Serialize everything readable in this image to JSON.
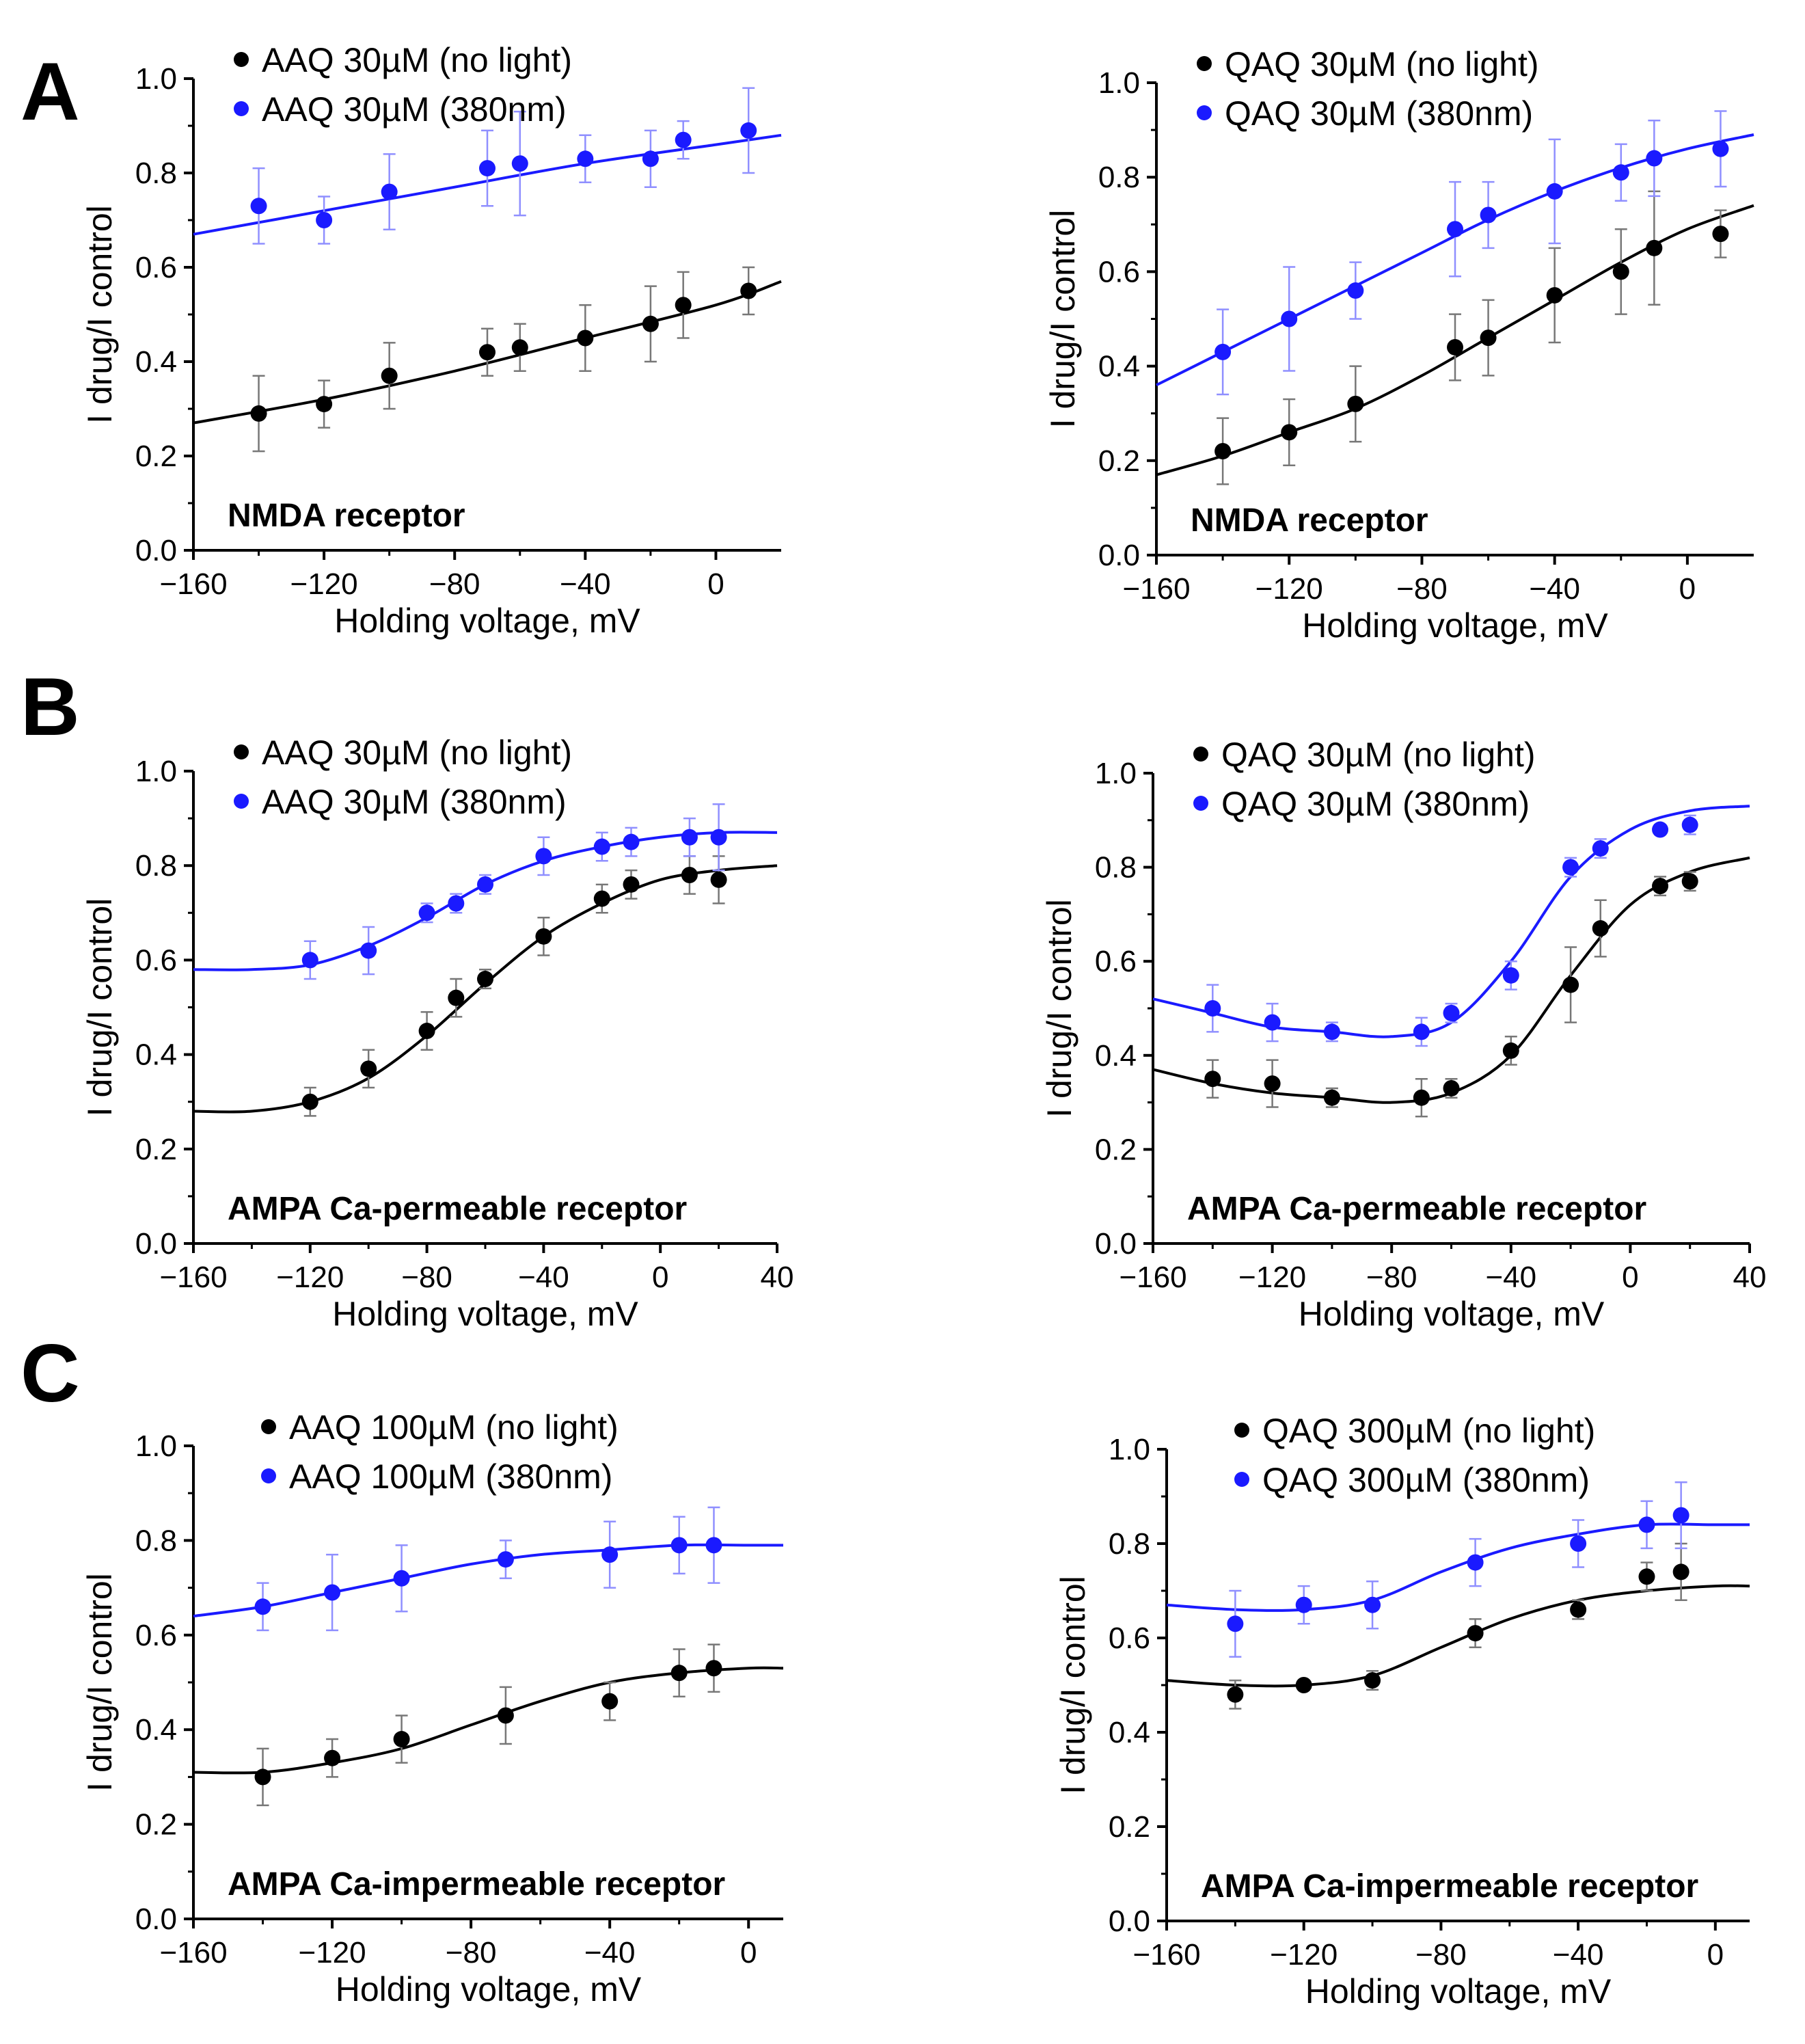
{
  "panel_letters": [
    "A",
    "B",
    "C"
  ],
  "colors": {
    "no_light": "#000000",
    "light": "#1a1aff",
    "light_errbar": "#8f8fff",
    "dark_errbar": "#777777"
  },
  "chart_data": [
    {
      "type": "scatter",
      "panel": "A",
      "title": "",
      "xlabel": "Holding voltage, mV",
      "ylabel": "I drug/I control",
      "xlim": [
        -160,
        20
      ],
      "ylim": [
        0.0,
        1.0
      ],
      "xticks": [
        -160,
        -120,
        -80,
        -40,
        0
      ],
      "xtick_labels": [
        "−160",
        "−120",
        "−80",
        "−40",
        "0"
      ],
      "yticks": [
        0.0,
        0.2,
        0.4,
        0.6,
        0.8,
        1.0
      ],
      "ytick_labels": [
        "0.0",
        "0.2",
        "0.4",
        "0.6",
        "0.8",
        "1.0"
      ],
      "annotation": "NMDA receptor",
      "legend_position": "top-left",
      "series": [
        {
          "name": "AAQ 30µM (no light)",
          "color": "#000000",
          "x": [
            -140,
            -120,
            -100,
            -70,
            -60,
            -40,
            -20,
            -10,
            10
          ],
          "y": [
            0.29,
            0.31,
            0.37,
            0.42,
            0.43,
            0.45,
            0.48,
            0.52,
            0.55
          ],
          "err": [
            0.08,
            0.05,
            0.07,
            0.05,
            0.05,
            0.07,
            0.08,
            0.07,
            0.05
          ],
          "fit": {
            "x": [
              -160,
              -120,
              -80,
              -40,
              0,
              20
            ],
            "y": [
              0.27,
              0.32,
              0.38,
              0.45,
              0.52,
              0.57
            ]
          }
        },
        {
          "name": "AAQ 30µM (380nm)",
          "color": "#1a1aff",
          "x": [
            -140,
            -120,
            -100,
            -70,
            -60,
            -40,
            -20,
            -10,
            10
          ],
          "y": [
            0.73,
            0.7,
            0.76,
            0.81,
            0.82,
            0.83,
            0.83,
            0.87,
            0.89
          ],
          "err": [
            0.08,
            0.05,
            0.08,
            0.08,
            0.11,
            0.05,
            0.06,
            0.04,
            0.09
          ],
          "fit": {
            "x": [
              -160,
              -120,
              -80,
              -40,
              0,
              20
            ],
            "y": [
              0.67,
              0.72,
              0.77,
              0.82,
              0.86,
              0.88
            ]
          }
        }
      ]
    },
    {
      "type": "scatter",
      "panel": "A",
      "title": "",
      "xlabel": "Holding voltage, mV",
      "ylabel": "I drug/I control",
      "xlim": [
        -160,
        20
      ],
      "ylim": [
        0.0,
        1.0
      ],
      "xticks": [
        -160,
        -120,
        -80,
        -40,
        0
      ],
      "xtick_labels": [
        "−160",
        "−120",
        "−80",
        "−40",
        "0"
      ],
      "yticks": [
        0.0,
        0.2,
        0.4,
        0.6,
        0.8,
        1.0
      ],
      "ytick_labels": [
        "0.0",
        "0.2",
        "0.4",
        "0.6",
        "0.8",
        "1.0"
      ],
      "annotation": "NMDA receptor",
      "legend_position": "top-left",
      "series": [
        {
          "name": "QAQ 30µM (no light)",
          "color": "#000000",
          "x": [
            -140,
            -120,
            -100,
            -70,
            -60,
            -40,
            -20,
            -10,
            10
          ],
          "y": [
            0.22,
            0.26,
            0.32,
            0.44,
            0.46,
            0.55,
            0.6,
            0.65,
            0.68
          ],
          "err": [
            0.07,
            0.07,
            0.08,
            0.07,
            0.08,
            0.1,
            0.09,
            0.12,
            0.05
          ],
          "fit": {
            "x": [
              -160,
              -140,
              -120,
              -100,
              -80,
              -60,
              -40,
              -20,
              0,
              20
            ],
            "y": [
              0.17,
              0.21,
              0.26,
              0.31,
              0.38,
              0.46,
              0.54,
              0.62,
              0.69,
              0.74
            ]
          }
        },
        {
          "name": "QAQ 30µM (380nm)",
          "color": "#1a1aff",
          "x": [
            -140,
            -120,
            -100,
            -70,
            -60,
            -40,
            -20,
            -10,
            10
          ],
          "y": [
            0.43,
            0.5,
            0.56,
            0.69,
            0.72,
            0.77,
            0.81,
            0.84,
            0.86
          ],
          "err": [
            0.09,
            0.11,
            0.06,
            0.1,
            0.07,
            0.11,
            0.06,
            0.08,
            0.08
          ],
          "fit": {
            "x": [
              -160,
              -140,
              -120,
              -100,
              -80,
              -60,
              -40,
              -20,
              0,
              20
            ],
            "y": [
              0.36,
              0.43,
              0.5,
              0.57,
              0.64,
              0.71,
              0.77,
              0.82,
              0.86,
              0.89
            ]
          }
        }
      ]
    },
    {
      "type": "scatter",
      "panel": "B",
      "title": "",
      "xlabel": "Holding voltage, mV",
      "ylabel": "I drug/I control",
      "xlim": [
        -160,
        40
      ],
      "ylim": [
        0.0,
        1.0
      ],
      "xticks": [
        -160,
        -120,
        -80,
        -40,
        0,
        40
      ],
      "xtick_labels": [
        "−160",
        "−120",
        "−80",
        "−40",
        "0",
        "40"
      ],
      "yticks": [
        0.0,
        0.2,
        0.4,
        0.6,
        0.8,
        1.0
      ],
      "ytick_labels": [
        "0.0",
        "0.2",
        "0.4",
        "0.6",
        "0.8",
        "1.0"
      ],
      "annotation": "AMPA Ca-permeable receptor",
      "legend_position": "top-left",
      "series": [
        {
          "name": "AAQ 30µM (no light)",
          "color": "#000000",
          "x": [
            -120,
            -100,
            -80,
            -70,
            -60,
            -40,
            -20,
            -10,
            10,
            20
          ],
          "y": [
            0.3,
            0.37,
            0.45,
            0.52,
            0.56,
            0.65,
            0.73,
            0.76,
            0.78,
            0.77
          ],
          "err": [
            0.03,
            0.04,
            0.04,
            0.04,
            0.02,
            0.04,
            0.03,
            0.03,
            0.04,
            0.05
          ],
          "fit": {
            "x": [
              -160,
              -140,
              -120,
              -100,
              -80,
              -60,
              -40,
              -20,
              0,
              20,
              40
            ],
            "y": [
              0.28,
              0.28,
              0.3,
              0.35,
              0.44,
              0.55,
              0.65,
              0.72,
              0.77,
              0.79,
              0.8
            ]
          }
        },
        {
          "name": "AAQ 30µM (380nm)",
          "color": "#1a1aff",
          "x": [
            -120,
            -100,
            -80,
            -70,
            -60,
            -40,
            -20,
            -10,
            10,
            20
          ],
          "y": [
            0.6,
            0.62,
            0.7,
            0.72,
            0.76,
            0.82,
            0.84,
            0.85,
            0.86,
            0.86
          ],
          "err": [
            0.04,
            0.05,
            0.02,
            0.02,
            0.02,
            0.04,
            0.03,
            0.03,
            0.04,
            0.07
          ],
          "fit": {
            "x": [
              -160,
              -140,
              -120,
              -100,
              -80,
              -60,
              -40,
              -20,
              0,
              20,
              40
            ],
            "y": [
              0.58,
              0.58,
              0.59,
              0.63,
              0.69,
              0.76,
              0.81,
              0.84,
              0.86,
              0.87,
              0.87
            ]
          }
        }
      ]
    },
    {
      "type": "scatter",
      "panel": "B",
      "title": "",
      "xlabel": "Holding voltage, mV",
      "ylabel": "I drug/I control",
      "xlim": [
        -160,
        40
      ],
      "ylim": [
        0.0,
        1.0
      ],
      "xticks": [
        -160,
        -120,
        -80,
        -40,
        0,
        40
      ],
      "xtick_labels": [
        "−160",
        "−120",
        "−80",
        "−40",
        "0",
        "40"
      ],
      "yticks": [
        0.0,
        0.2,
        0.4,
        0.6,
        0.8,
        1.0
      ],
      "ytick_labels": [
        "0.0",
        "0.2",
        "0.4",
        "0.6",
        "0.8",
        "1.0"
      ],
      "annotation": "AMPA Ca-permeable receptor",
      "legend_position": "top-left",
      "series": [
        {
          "name": "QAQ 30µM (no light)",
          "color": "#000000",
          "x": [
            -140,
            -120,
            -100,
            -70,
            -60,
            -40,
            -20,
            -10,
            10,
            20
          ],
          "y": [
            0.35,
            0.34,
            0.31,
            0.31,
            0.33,
            0.41,
            0.55,
            0.67,
            0.76,
            0.77
          ],
          "err": [
            0.04,
            0.05,
            0.02,
            0.04,
            0.02,
            0.03,
            0.08,
            0.06,
            0.02,
            0.02
          ],
          "fit": {
            "x": [
              -160,
              -140,
              -120,
              -100,
              -80,
              -60,
              -40,
              -20,
              0,
              20,
              40
            ],
            "y": [
              0.37,
              0.34,
              0.32,
              0.31,
              0.3,
              0.32,
              0.4,
              0.57,
              0.72,
              0.79,
              0.82
            ]
          }
        },
        {
          "name": "QAQ 30µM (380nm)",
          "color": "#1a1aff",
          "x": [
            -140,
            -120,
            -100,
            -70,
            -60,
            -40,
            -20,
            -10,
            10,
            20
          ],
          "y": [
            0.5,
            0.47,
            0.45,
            0.45,
            0.49,
            0.57,
            0.8,
            0.84,
            0.88,
            0.89
          ],
          "err": [
            0.05,
            0.04,
            0.02,
            0.03,
            0.02,
            0.03,
            0.02,
            0.02,
            0.01,
            0.02
          ],
          "fit": {
            "x": [
              -160,
              -140,
              -120,
              -100,
              -80,
              -60,
              -40,
              -20,
              0,
              20,
              40
            ],
            "y": [
              0.52,
              0.49,
              0.46,
              0.45,
              0.44,
              0.47,
              0.6,
              0.78,
              0.88,
              0.92,
              0.93
            ]
          }
        }
      ]
    },
    {
      "type": "scatter",
      "panel": "C",
      "title": "",
      "xlabel": "Holding voltage, mV",
      "ylabel": "I drug/I control",
      "xlim": [
        -160,
        10
      ],
      "ylim": [
        0.0,
        1.0
      ],
      "xticks": [
        -160,
        -120,
        -80,
        -40,
        0
      ],
      "xtick_labels": [
        "−160",
        "−120",
        "−80",
        "−40",
        "0"
      ],
      "yticks": [
        0.0,
        0.2,
        0.4,
        0.6,
        0.8,
        1.0
      ],
      "ytick_labels": [
        "0.0",
        "0.2",
        "0.4",
        "0.6",
        "0.8",
        "1.0"
      ],
      "annotation": "AMPA Ca-impermeable receptor",
      "legend_position": "top-left",
      "series": [
        {
          "name": "AAQ 100µM (no light)",
          "color": "#000000",
          "x": [
            -140,
            -120,
            -100,
            -70,
            -40,
            -20,
            -10
          ],
          "y": [
            0.3,
            0.34,
            0.38,
            0.43,
            0.46,
            0.52,
            0.53
          ],
          "err": [
            0.06,
            0.04,
            0.05,
            0.06,
            0.04,
            0.05,
            0.05
          ],
          "fit": {
            "x": [
              -160,
              -140,
              -120,
              -100,
              -80,
              -60,
              -40,
              -20,
              0,
              10
            ],
            "y": [
              0.31,
              0.31,
              0.33,
              0.36,
              0.41,
              0.46,
              0.5,
              0.52,
              0.53,
              0.53
            ]
          }
        },
        {
          "name": "AAQ 100µM (380nm)",
          "color": "#1a1aff",
          "x": [
            -140,
            -120,
            -100,
            -70,
            -40,
            -20,
            -10
          ],
          "y": [
            0.66,
            0.69,
            0.72,
            0.76,
            0.77,
            0.79,
            0.79
          ],
          "err": [
            0.05,
            0.08,
            0.07,
            0.04,
            0.07,
            0.06,
            0.08
          ],
          "fit": {
            "x": [
              -160,
              -140,
              -120,
              -100,
              -80,
              -60,
              -40,
              -20,
              0,
              10
            ],
            "y": [
              0.64,
              0.66,
              0.69,
              0.72,
              0.75,
              0.77,
              0.78,
              0.79,
              0.79,
              0.79
            ]
          }
        }
      ]
    },
    {
      "type": "scatter",
      "panel": "C",
      "title": "",
      "xlabel": "Holding voltage, mV",
      "ylabel": "I drug/I control",
      "xlim": [
        -160,
        10
      ],
      "ylim": [
        0.0,
        1.0
      ],
      "xticks": [
        -160,
        -120,
        -80,
        -40,
        0
      ],
      "xtick_labels": [
        "−160",
        "−120",
        "−80",
        "−40",
        "0"
      ],
      "yticks": [
        0.0,
        0.2,
        0.4,
        0.6,
        0.8,
        1.0
      ],
      "ytick_labels": [
        "0.0",
        "0.2",
        "0.4",
        "0.6",
        "0.8",
        "1.0"
      ],
      "annotation": "AMPA Ca-impermeable receptor",
      "legend_position": "top-left",
      "series": [
        {
          "name": "QAQ 300µM (no light)",
          "color": "#000000",
          "x": [
            -140,
            -120,
            -100,
            -70,
            -40,
            -20,
            -10
          ],
          "y": [
            0.48,
            0.5,
            0.51,
            0.61,
            0.66,
            0.73,
            0.74
          ],
          "err": [
            0.03,
            0.01,
            0.02,
            0.03,
            0.02,
            0.03,
            0.06
          ],
          "fit": {
            "x": [
              -160,
              -140,
              -120,
              -100,
              -80,
              -60,
              -40,
              -20,
              0,
              10
            ],
            "y": [
              0.51,
              0.5,
              0.5,
              0.52,
              0.58,
              0.64,
              0.68,
              0.7,
              0.71,
              0.71
            ]
          }
        },
        {
          "name": "QAQ 300µM (380nm)",
          "color": "#1a1aff",
          "x": [
            -140,
            -120,
            -100,
            -70,
            -40,
            -20,
            -10
          ],
          "y": [
            0.63,
            0.67,
            0.67,
            0.76,
            0.8,
            0.84,
            0.86
          ],
          "err": [
            0.07,
            0.04,
            0.05,
            0.05,
            0.05,
            0.05,
            0.07
          ],
          "fit": {
            "x": [
              -160,
              -140,
              -120,
              -100,
              -80,
              -60,
              -40,
              -20,
              0,
              10
            ],
            "y": [
              0.67,
              0.66,
              0.66,
              0.68,
              0.74,
              0.79,
              0.82,
              0.84,
              0.84,
              0.84
            ]
          }
        }
      ]
    }
  ]
}
